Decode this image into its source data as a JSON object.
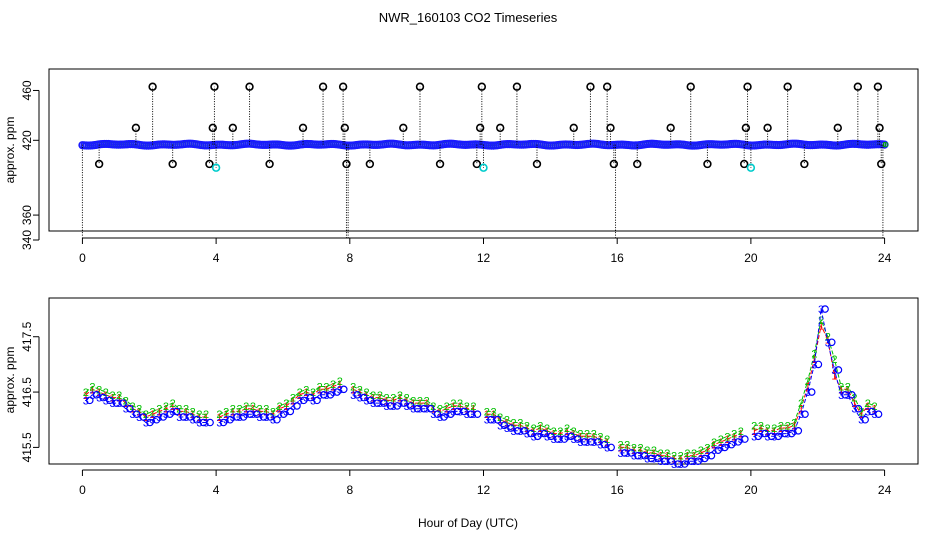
{
  "chart_data": [
    {
      "type": "scatter",
      "title": "NWR_160103  CO2 Timeseries",
      "xlabel": "Hour of Day (UTC)",
      "ylabel": "approx. ppm",
      "xlim": [
        -1,
        25
      ],
      "ylim": [
        340,
        470
      ],
      "xticks": [
        0,
        4,
        8,
        12,
        16,
        20,
        24
      ],
      "yticks": [
        340,
        360,
        420,
        460
      ],
      "baseline_ppm": 416.5,
      "series": [
        {
          "name": "flagged high (open circle)",
          "color": "#000000",
          "x": [
            1.6,
            2.1,
            3.9,
            3.95,
            4.5,
            5.0,
            6.6,
            7.2,
            7.8,
            7.85,
            9.6,
            10.1,
            11.9,
            11.95,
            12.5,
            13.0,
            14.7,
            15.2,
            15.7,
            15.8,
            17.6,
            18.2,
            19.85,
            19.9,
            20.5,
            21.1,
            22.6,
            23.2,
            23.8,
            23.85
          ],
          "values": [
            430,
            463,
            430,
            463,
            430,
            463,
            430,
            463,
            463,
            430,
            430,
            463,
            430,
            463,
            430,
            463,
            430,
            463,
            463,
            430,
            430,
            463,
            430,
            463,
            430,
            463,
            430,
            463,
            463,
            430
          ]
        },
        {
          "name": "flagged low (open circle)",
          "color": "#000000",
          "x": [
            0.5,
            2.7,
            3.8,
            5.6,
            7.9,
            8.6,
            10.7,
            11.8,
            13.6,
            15.9,
            16.6,
            18.7,
            19.8,
            21.6,
            23.9
          ],
          "values": [
            401,
            401,
            401,
            401,
            401,
            401,
            401,
            401,
            401,
            401,
            401,
            401,
            401,
            401,
            401
          ]
        },
        {
          "name": "flagged low (cyan)",
          "color": "#00cccc",
          "x": [
            4.0,
            12.0,
            20.0
          ],
          "values": [
            398,
            398,
            398
          ]
        }
      ]
    },
    {
      "type": "line",
      "title": "",
      "xlabel": "Hour of Day (UTC)",
      "ylabel": "approx. ppm",
      "xlim": [
        -1,
        25
      ],
      "ylim": [
        415.2,
        418.2
      ],
      "xticks": [
        0,
        4,
        8,
        12,
        16,
        20,
        24
      ],
      "yticks": [
        415.5,
        416.5,
        417.5
      ],
      "markers": [
        "1",
        "2",
        "3"
      ],
      "x": [
        0.1,
        0.3,
        0.5,
        0.7,
        0.9,
        1.1,
        1.3,
        1.5,
        1.7,
        1.9,
        2.1,
        2.3,
        2.5,
        2.7,
        2.9,
        3.1,
        3.3,
        3.5,
        3.7,
        4.1,
        4.3,
        4.5,
        4.7,
        4.9,
        5.1,
        5.3,
        5.5,
        5.7,
        5.9,
        6.1,
        6.3,
        6.5,
        6.7,
        6.9,
        7.1,
        7.3,
        7.5,
        7.7,
        8.1,
        8.3,
        8.5,
        8.7,
        8.9,
        9.1,
        9.3,
        9.5,
        9.7,
        9.9,
        10.1,
        10.3,
        10.5,
        10.7,
        10.9,
        11.1,
        11.3,
        11.5,
        11.7,
        12.1,
        12.3,
        12.5,
        12.7,
        12.9,
        13.1,
        13.3,
        13.5,
        13.7,
        13.9,
        14.1,
        14.3,
        14.5,
        14.7,
        14.9,
        15.1,
        15.3,
        15.5,
        15.7,
        16.1,
        16.3,
        16.5,
        16.7,
        16.9,
        17.1,
        17.3,
        17.5,
        17.7,
        17.9,
        18.1,
        18.3,
        18.5,
        18.7,
        18.9,
        19.1,
        19.3,
        19.5,
        19.7,
        20.1,
        20.3,
        20.5,
        20.7,
        20.9,
        21.1,
        21.3,
        21.5,
        21.7,
        21.9,
        22.1,
        22.3,
        22.5,
        22.7,
        22.9,
        23.1,
        23.3,
        23.5,
        23.7
      ],
      "series": [
        {
          "name": "1",
          "color": "#ff0000",
          "values": [
            416.45,
            416.55,
            416.5,
            416.45,
            416.4,
            416.4,
            416.3,
            416.2,
            416.15,
            416.05,
            416.1,
            416.15,
            416.2,
            416.25,
            416.15,
            416.15,
            416.1,
            416.05,
            416.05,
            416.05,
            416.1,
            416.15,
            416.15,
            416.2,
            416.2,
            416.15,
            416.15,
            416.1,
            416.2,
            416.25,
            416.35,
            416.45,
            416.5,
            416.45,
            416.55,
            416.55,
            416.6,
            416.65,
            416.55,
            416.5,
            416.45,
            416.4,
            416.4,
            416.35,
            416.35,
            416.4,
            416.35,
            416.3,
            416.3,
            416.3,
            416.2,
            416.15,
            416.2,
            416.25,
            416.25,
            416.2,
            416.2,
            416.1,
            416.1,
            416.0,
            415.95,
            415.9,
            415.9,
            415.85,
            415.8,
            415.85,
            415.8,
            415.75,
            415.75,
            415.8,
            415.75,
            415.7,
            415.7,
            415.7,
            415.65,
            415.6,
            415.5,
            415.5,
            415.45,
            415.45,
            415.4,
            415.4,
            415.35,
            415.35,
            415.3,
            415.3,
            415.35,
            415.35,
            415.4,
            415.45,
            415.55,
            415.6,
            415.65,
            415.7,
            415.75,
            415.8,
            415.85,
            415.8,
            415.8,
            415.85,
            415.85,
            415.9,
            416.2,
            416.6,
            417.1,
            417.7,
            417.45,
            416.8,
            416.55,
            416.55,
            416.3,
            416.1,
            416.25,
            416.2
          ]
        },
        {
          "name": "2",
          "color": "#00c000",
          "values": [
            416.5,
            416.6,
            416.55,
            416.5,
            416.45,
            416.45,
            416.35,
            416.25,
            416.2,
            416.1,
            416.15,
            416.2,
            416.25,
            416.3,
            416.2,
            416.2,
            416.15,
            416.1,
            416.1,
            416.1,
            416.15,
            416.2,
            416.2,
            416.25,
            416.25,
            416.2,
            416.2,
            416.15,
            416.25,
            416.3,
            416.4,
            416.5,
            416.55,
            416.5,
            416.6,
            416.6,
            416.65,
            416.7,
            416.6,
            416.55,
            416.5,
            416.45,
            416.45,
            416.4,
            416.4,
            416.45,
            416.4,
            416.35,
            416.35,
            416.35,
            416.25,
            416.2,
            416.25,
            416.3,
            416.3,
            416.25,
            416.25,
            416.15,
            416.15,
            416.05,
            416.0,
            415.95,
            415.95,
            415.9,
            415.85,
            415.9,
            415.85,
            415.8,
            415.8,
            415.85,
            415.8,
            415.75,
            415.75,
            415.75,
            415.7,
            415.65,
            415.55,
            415.55,
            415.5,
            415.5,
            415.45,
            415.45,
            415.4,
            415.4,
            415.35,
            415.35,
            415.4,
            415.4,
            415.45,
            415.5,
            415.6,
            415.65,
            415.7,
            415.75,
            415.8,
            415.9,
            415.9,
            415.85,
            415.85,
            415.9,
            415.9,
            415.95,
            416.3,
            416.7,
            417.2,
            417.8,
            417.5,
            417.1,
            416.6,
            416.6,
            416.4,
            416.15,
            416.3,
            416.25
          ]
        },
        {
          "name": "3",
          "color": "#0000ff",
          "values": [
            416.35,
            416.45,
            416.4,
            416.35,
            416.3,
            416.3,
            416.2,
            416.1,
            416.05,
            415.95,
            416.0,
            416.05,
            416.1,
            416.15,
            416.05,
            416.05,
            416.0,
            415.95,
            415.95,
            415.95,
            416.0,
            416.05,
            416.05,
            416.1,
            416.1,
            416.05,
            416.05,
            416.0,
            416.1,
            416.15,
            416.25,
            416.35,
            416.4,
            416.35,
            416.45,
            416.45,
            416.5,
            416.55,
            416.45,
            416.4,
            416.35,
            416.3,
            416.3,
            416.25,
            416.25,
            416.3,
            416.25,
            416.2,
            416.2,
            416.2,
            416.1,
            416.05,
            416.1,
            416.15,
            416.15,
            416.1,
            416.1,
            416.0,
            416.0,
            415.9,
            415.85,
            415.8,
            415.8,
            415.75,
            415.7,
            415.75,
            415.7,
            415.65,
            415.65,
            415.7,
            415.65,
            415.6,
            415.6,
            415.6,
            415.55,
            415.5,
            415.4,
            415.4,
            415.35,
            415.35,
            415.3,
            415.3,
            415.25,
            415.25,
            415.2,
            415.2,
            415.25,
            415.25,
            415.3,
            415.35,
            415.45,
            415.5,
            415.55,
            415.6,
            415.65,
            415.7,
            415.75,
            415.7,
            415.7,
            415.75,
            415.75,
            415.8,
            416.1,
            416.5,
            417.0,
            418.0,
            417.4,
            416.9,
            416.45,
            416.45,
            416.2,
            416.0,
            416.15,
            416.1
          ]
        }
      ]
    }
  ]
}
